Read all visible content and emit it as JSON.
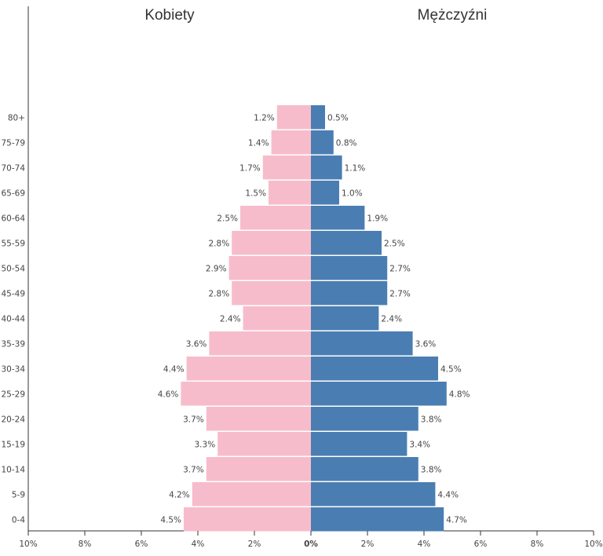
{
  "chart_data": {
    "type": "bar",
    "subtype": "population-pyramid",
    "left_title": "Kobiety",
    "right_title": "Mężczyźni",
    "categories": [
      "80+",
      "75-79",
      "70-74",
      "65-69",
      "60-64",
      "55-59",
      "50-54",
      "45-49",
      "40-44",
      "35-39",
      "30-34",
      "25-29",
      "20-24",
      "15-19",
      "10-14",
      "5-9",
      "0-4"
    ],
    "category_labels": [
      "80+",
      "75-79",
      "70-74",
      "65-69",
      "60-64",
      "55-59",
      "50-54",
      "45-49",
      "40-44",
      "35-39",
      "30-34",
      "25-29",
      "20-24",
      "15-19",
      "10-14",
      "5-9",
      "0-4"
    ],
    "series": [
      {
        "name": "Kobiety",
        "color": "#f7bccb",
        "values": [
          1.2,
          1.4,
          1.7,
          1.5,
          2.5,
          2.8,
          2.9,
          2.8,
          2.4,
          3.6,
          4.4,
          4.6,
          3.7,
          3.3,
          3.7,
          4.2,
          4.5
        ],
        "labels": [
          "1.2%",
          "1.4%",
          "1.7%",
          "1.5%",
          "2.5%",
          "2.8%",
          "2.9%",
          "2.8%",
          "2.4%",
          "3.6%",
          "4.4%",
          "4.6%",
          "3.7%",
          "3.3%",
          "3.7%",
          "4.2%",
          "4.5%"
        ]
      },
      {
        "name": "Mężczyźni",
        "color": "#4a7eb3",
        "values": [
          0.5,
          0.8,
          1.1,
          1.0,
          1.9,
          2.5,
          2.7,
          2.7,
          2.4,
          3.6,
          4.5,
          4.8,
          3.8,
          3.4,
          3.8,
          4.4,
          4.7
        ],
        "labels": [
          "0.5%",
          "0.8%",
          "1.1%",
          "1.0%",
          "1.9%",
          "2.5%",
          "2.7%",
          "2.7%",
          "2.4%",
          "3.6%",
          "4.5%",
          "4.8%",
          "3.8%",
          "3.4%",
          "3.8%",
          "4.4%",
          "4.7%"
        ]
      }
    ],
    "x_ticks": [
      -10,
      -8,
      -6,
      -4,
      -2,
      0,
      2,
      4,
      6,
      8,
      10
    ],
    "x_tick_labels": [
      "10%",
      "8%",
      "6%",
      "4%",
      "2%",
      "0%",
      "2%",
      "4%",
      "6%",
      "8%",
      "10%"
    ],
    "xlim": [
      -10,
      10
    ],
    "grid": false,
    "legend": "none"
  }
}
